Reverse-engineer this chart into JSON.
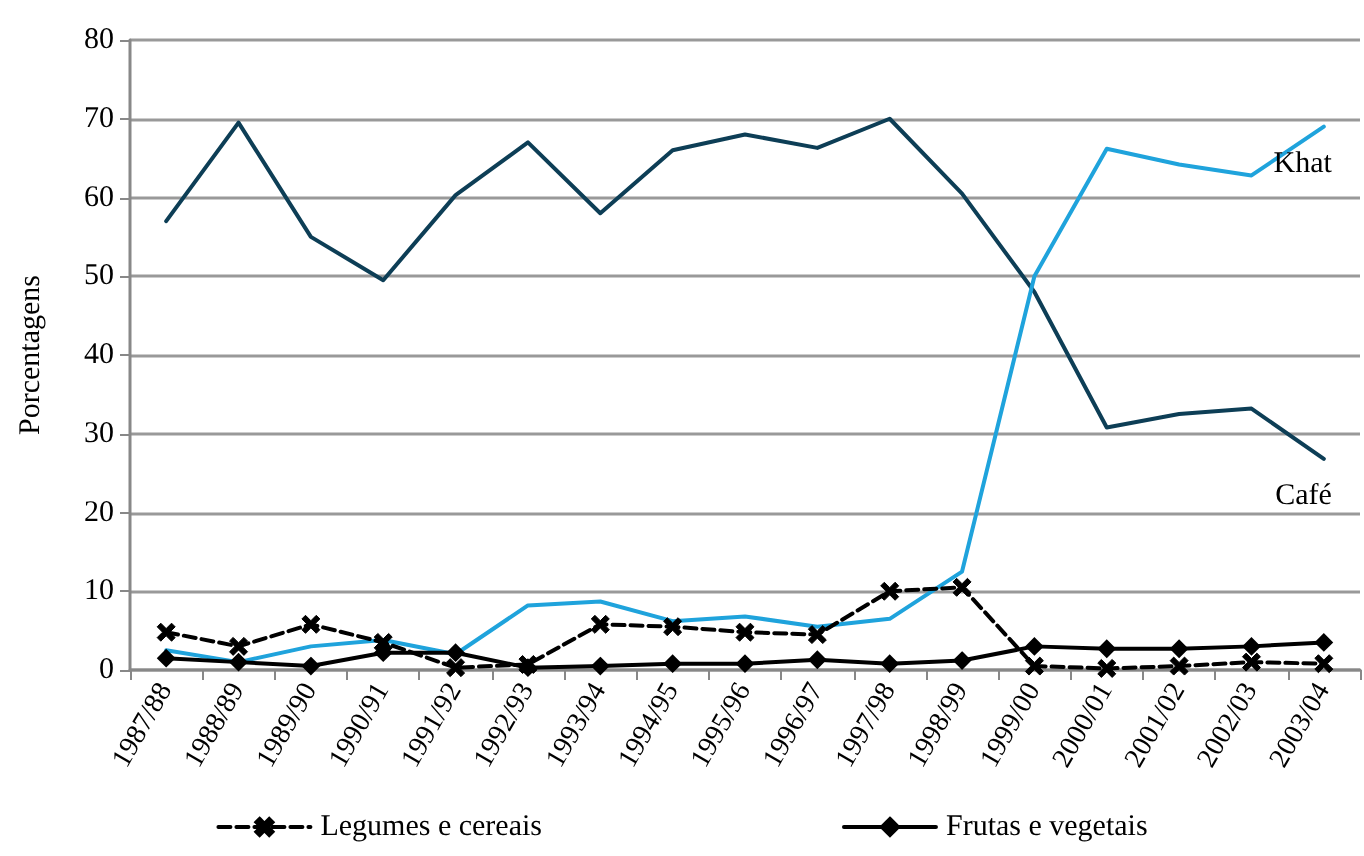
{
  "chart_data": {
    "type": "line",
    "ylabel": "Porcentagens",
    "categories": [
      "1987/88",
      "1988/89",
      "1989/90",
      "1990/91",
      "1991/92",
      "1992/93",
      "1993/94",
      "1994/95",
      "1995/96",
      "1996/97",
      "1997/98",
      "1998/99",
      "1999/00",
      "2000/01",
      "2001/02",
      "2002/03",
      "2003/04"
    ],
    "series": [
      {
        "name": "Café",
        "color": "#0d3e56",
        "marker": "none",
        "line_style": "solid",
        "values": [
          57,
          69.5,
          55,
          49.5,
          60.3,
          67,
          58,
          66,
          68,
          66.3,
          70,
          60.5,
          48,
          30.8,
          32.5,
          33.2,
          26.8
        ]
      },
      {
        "name": "Khat",
        "color": "#1fa3dc",
        "marker": "none",
        "line_style": "solid",
        "values": [
          2.5,
          1,
          3,
          3.8,
          2,
          8.2,
          8.7,
          6.2,
          6.8,
          5.5,
          6.5,
          12.5,
          50,
          66.2,
          64.2,
          62.8,
          69
        ]
      },
      {
        "name": "Legumes e cereais",
        "color": "#000000",
        "marker": "cross",
        "line_style": "dashed",
        "values": [
          4.8,
          3,
          5.8,
          3.5,
          0.3,
          0.7,
          5.8,
          5.5,
          4.8,
          4.5,
          10,
          10.5,
          0.5,
          0.2,
          0.5,
          1,
          0.8
        ]
      },
      {
        "name": "Frutas e vegetais",
        "color": "#000000",
        "marker": "diamond",
        "line_style": "solid",
        "values": [
          1.5,
          1,
          0.5,
          2.2,
          2.2,
          0.3,
          0.5,
          0.8,
          0.8,
          1.3,
          0.8,
          1.2,
          3,
          2.7,
          2.7,
          3,
          3.5
        ]
      }
    ],
    "ylim": [
      0,
      80
    ],
    "yticks": [
      0,
      10,
      20,
      30,
      40,
      50,
      60,
      70,
      80
    ],
    "grid": "y",
    "legend": "bottom"
  }
}
